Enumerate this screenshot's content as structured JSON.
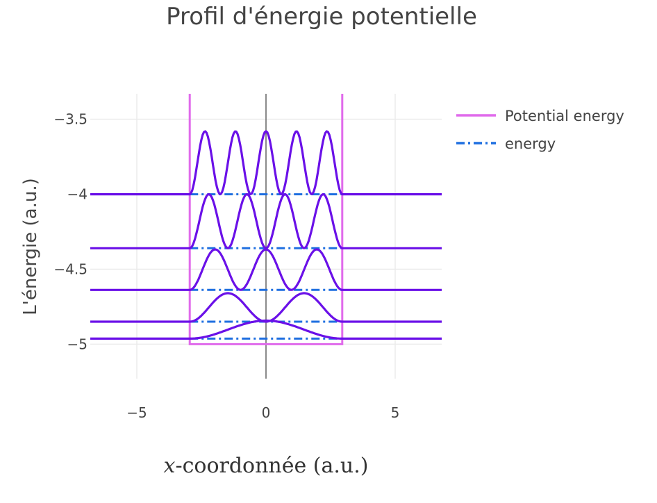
{
  "chart_data": {
    "type": "line",
    "title": "Profil d'énergie potentielle",
    "xlabel_var": "x",
    "xlabel_rest": "-coordonnée (a.u.)",
    "ylabel": "L'énergie (a.u.)",
    "xlim": [
      -6.8,
      6.8
    ],
    "ylim": [
      -5.23,
      -3.33
    ],
    "xticks": [
      {
        "value": -5,
        "label": "−5"
      },
      {
        "value": 0,
        "label": "0"
      },
      {
        "value": 5,
        "label": "5"
      }
    ],
    "yticks": [
      {
        "value": -3.5,
        "label": "−3.5"
      },
      {
        "value": -4,
        "label": "−4"
      },
      {
        "value": -4.5,
        "label": "−4.5"
      },
      {
        "value": -5,
        "label": "−5"
      }
    ],
    "grid": true,
    "legend_position": "top-right",
    "legend": [
      {
        "name": "Potential energy",
        "color": "#e06aeb",
        "style": "solid"
      },
      {
        "name": "energy",
        "color": "#1f6fe0",
        "style": "dashdot"
      }
    ],
    "potential_well": {
      "x": [
        -2.95,
        -2.95,
        2.95,
        2.95
      ],
      "y": [
        -3.3,
        -5.0,
        -5.0,
        -3.3
      ]
    },
    "energy_levels": [
      -4.963,
      -4.85,
      -4.638,
      -4.36,
      -4.0
    ],
    "wavefunction_color": "#6a10e8",
    "wavefunctions": [
      {
        "level": -4.963,
        "peak": 0.12,
        "peak_x": [
          0
        ]
      },
      {
        "level": -4.85,
        "peak": 0.19,
        "peak_x": [
          -1.55,
          1.55
        ]
      },
      {
        "level": -4.638,
        "peak": 0.27,
        "peak_x": [
          -2.05,
          0.0,
          2.05
        ]
      },
      {
        "level": -4.36,
        "peak": 0.36,
        "peak_x": [
          -2.3,
          -0.8,
          0.8,
          2.3
        ]
      },
      {
        "level": -4.0,
        "peak": 0.42,
        "peak_x": [
          -2.5,
          -1.25,
          0.0,
          1.25,
          2.5
        ]
      }
    ],
    "colors": {
      "axis_zero": "#444444",
      "grid": "#ebebeb"
    }
  }
}
